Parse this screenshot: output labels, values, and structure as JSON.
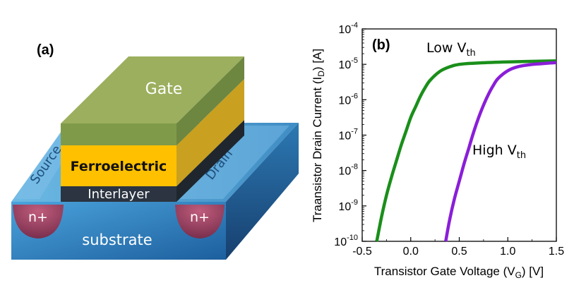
{
  "panel_a": {
    "label": "(a)",
    "layers": {
      "gate": "Gate",
      "ferroelectric": "Ferroelectric",
      "interlayer": "Interlayer",
      "source": "Source",
      "drain": "Drain",
      "n_plus_left": "n+",
      "n_plus_right": "n+",
      "substrate": "substrate"
    },
    "colors": {
      "gate_top": "#9caf5e",
      "gate_front": "#7f9a49",
      "ferro_front": "#ffc000",
      "ferro_side": "#c9a020",
      "interlayer": "#2b3440",
      "substrate_top": "#5aa8d6",
      "substrate_front": "#2f86c2",
      "n_plus": "#a04a6a"
    }
  },
  "chart_data": {
    "type": "line",
    "panel_label": "(b)",
    "title": "",
    "xlabel": "Transistor Gate Voltage (V_G) [V]",
    "xlabel_parts": {
      "main": "Transistor Gate Voltage (V",
      "sub": "G",
      "tail": ") [V]"
    },
    "ylabel": "Traansistor Drain Current (I_D) [A]",
    "ylabel_parts": {
      "main": "Traansistor Drain Current (I",
      "sub": "D",
      "tail": ") [A]"
    },
    "xlim": [
      -0.5,
      1.5
    ],
    "yscale": "log",
    "ylim_exp": [
      -10,
      -4
    ],
    "x_ticks": [
      -0.5,
      0.0,
      0.5,
      1.0,
      1.5
    ],
    "x_tick_labels": [
      "-0.5",
      "0.0",
      "0.5",
      "1.0",
      "1.5"
    ],
    "y_tick_exponents": [
      -10,
      -9,
      -8,
      -7,
      -6,
      -5,
      -4
    ],
    "y_tick_base": "10",
    "series": [
      {
        "name": "Low V_th",
        "label_main": "Low V",
        "label_sub": "th",
        "color": "#1a8f1a",
        "x": [
          -0.35,
          -0.3,
          -0.25,
          -0.2,
          -0.15,
          -0.1,
          -0.05,
          0.0,
          0.05,
          0.1,
          0.15,
          0.2,
          0.3,
          0.4,
          0.5,
          0.7,
          1.0,
          1.5
        ],
        "log10_y": [
          -10.0,
          -9.3,
          -8.7,
          -8.2,
          -7.75,
          -7.3,
          -6.9,
          -6.5,
          -6.2,
          -5.9,
          -5.65,
          -5.45,
          -5.2,
          -5.07,
          -5.0,
          -4.96,
          -4.93,
          -4.9
        ]
      },
      {
        "name": "High V_th",
        "label_main": "High V",
        "label_sub": "th",
        "color": "#8a1ed8",
        "x": [
          0.36,
          0.4,
          0.45,
          0.5,
          0.55,
          0.6,
          0.65,
          0.7,
          0.75,
          0.8,
          0.85,
          0.9,
          1.0,
          1.1,
          1.2,
          1.35,
          1.5
        ],
        "log10_y": [
          -10.0,
          -9.4,
          -8.8,
          -8.3,
          -7.8,
          -7.35,
          -6.9,
          -6.5,
          -6.15,
          -5.85,
          -5.6,
          -5.4,
          -5.18,
          -5.07,
          -5.02,
          -4.98,
          -4.95
        ]
      }
    ],
    "annotations": [
      {
        "series": "Low V_th",
        "main": "Low V",
        "sub": "th"
      },
      {
        "series": "High V_th",
        "main": "High V",
        "sub": "th"
      }
    ]
  }
}
